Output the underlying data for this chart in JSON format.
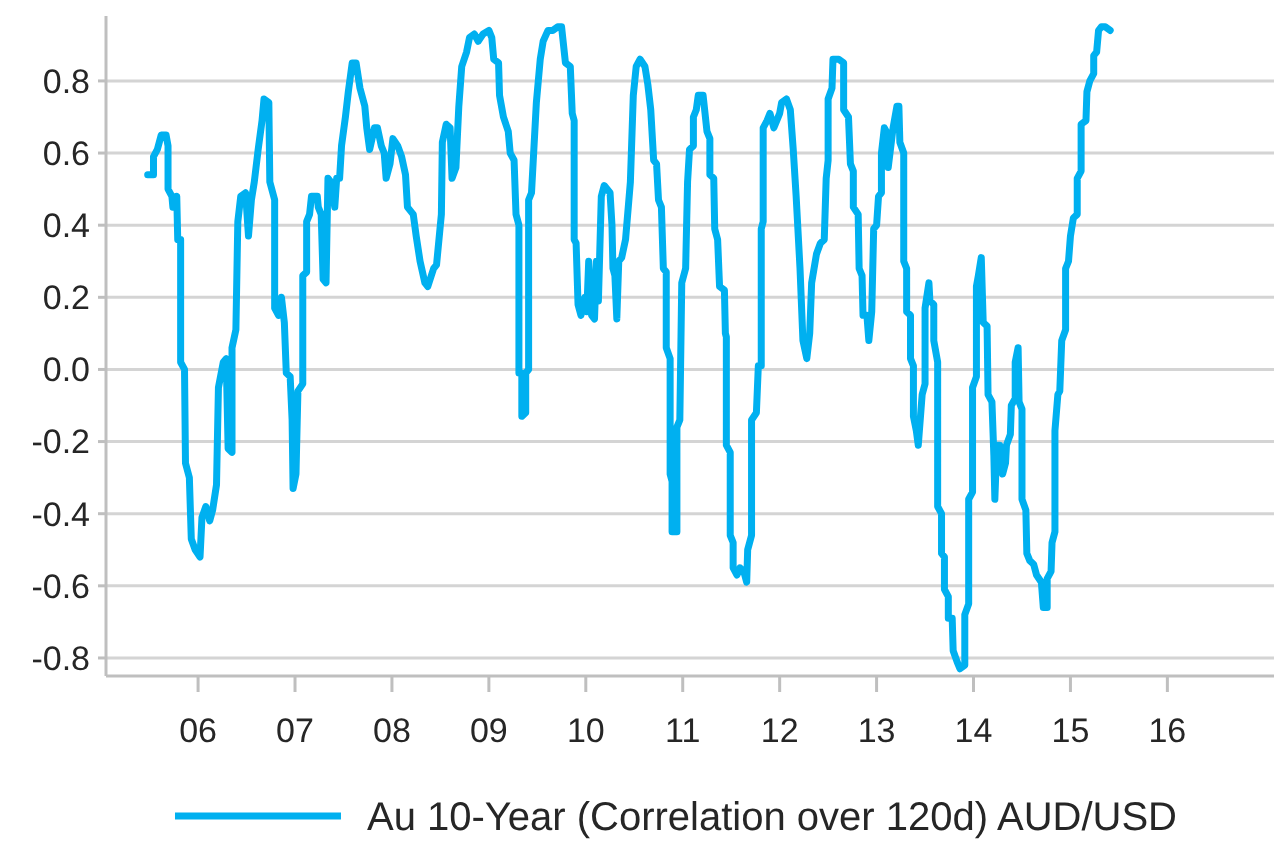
{
  "chart_data": {
    "type": "line",
    "x": [
      2005.48,
      2005.54,
      2005.54,
      2005.58,
      2005.62,
      2005.67,
      2005.69,
      2005.69,
      2005.73,
      2005.74,
      2005.78,
      2005.79,
      2005.82,
      2005.82,
      2005.86,
      2005.87,
      2005.91,
      2005.93,
      2005.97,
      2006.02,
      2006.04,
      2006.08,
      2006.12,
      2006.15,
      2006.19,
      2006.21,
      2006.26,
      2006.29,
      2006.31,
      2006.35,
      2006.35,
      2006.39,
      2006.41,
      2006.44,
      2006.49,
      2006.52,
      2006.55,
      2006.58,
      2006.62,
      2006.66,
      2006.68,
      2006.73,
      2006.74,
      2006.79,
      2006.79,
      2006.83,
      2006.86,
      2006.89,
      2006.91,
      2006.95,
      2006.97,
      2006.98,
      2007.01,
      2007.03,
      2007.08,
      2007.08,
      2007.12,
      2007.12,
      2007.15,
      2007.17,
      2007.23,
      2007.24,
      2007.27,
      2007.29,
      2007.32,
      2007.34,
      2007.37,
      2007.41,
      2007.43,
      2007.46,
      2007.48,
      2007.52,
      2007.55,
      2007.59,
      2007.63,
      2007.67,
      2007.72,
      2007.74,
      2007.77,
      2007.82,
      2007.85,
      2007.89,
      2007.92,
      2007.94,
      2007.98,
      2008.01,
      2008.06,
      2008.1,
      2008.14,
      2008.16,
      2008.22,
      2008.25,
      2008.29,
      2008.34,
      2008.37,
      2008.43,
      2008.46,
      2008.51,
      2008.52,
      2008.56,
      2008.6,
      2008.62,
      2008.66,
      2008.69,
      2008.72,
      2008.77,
      2008.8,
      2008.85,
      2008.89,
      2008.94,
      2009.0,
      2009.03,
      2009.05,
      2009.1,
      2009.11,
      2009.15,
      2009.2,
      2009.22,
      2009.26,
      2009.28,
      2009.31,
      2009.31,
      2009.34,
      2009.34,
      2009.38,
      2009.38,
      2009.41,
      2009.41,
      2009.44,
      2009.49,
      2009.53,
      2009.56,
      2009.61,
      2009.66,
      2009.71,
      2009.75,
      2009.79,
      2009.84,
      2009.86,
      2009.88,
      2009.88,
      2009.9,
      2009.92,
      2009.95,
      2009.99,
      2010.01,
      2010.03,
      2010.06,
      2010.09,
      2010.11,
      2010.13,
      2010.16,
      2010.19,
      2010.25,
      2010.27,
      2010.28,
      2010.3,
      2010.32,
      2010.34,
      2010.37,
      2010.41,
      2010.46,
      2010.49,
      2010.52,
      2010.56,
      2010.61,
      2010.64,
      2010.67,
      2010.7,
      2010.73,
      2010.75,
      2010.78,
      2010.8,
      2010.83,
      2010.83,
      2010.87,
      2010.87,
      2010.89,
      2010.89,
      2010.94,
      2010.94,
      2010.97,
      2010.99,
      2011.03,
      2011.05,
      2011.07,
      2011.11,
      2011.11,
      2011.14,
      2011.16,
      2011.21,
      2011.25,
      2011.28,
      2011.28,
      2011.32,
      2011.33,
      2011.36,
      2011.38,
      2011.43,
      2011.44,
      2011.45,
      2011.45,
      2011.49,
      2011.49,
      2011.52,
      2011.52,
      2011.56,
      2011.59,
      2011.63,
      2011.66,
      2011.67,
      2011.71,
      2011.71,
      2011.76,
      2011.78,
      2011.81,
      2011.81,
      2011.83,
      2011.83,
      2011.87,
      2011.9,
      2011.94,
      2011.97,
      2012.0,
      2012.02,
      2012.07,
      2012.11,
      2012.14,
      2012.17,
      2012.21,
      2012.24,
      2012.28,
      2012.31,
      2012.33,
      2012.38,
      2012.42,
      2012.46,
      2012.48,
      2012.5,
      2012.5,
      2012.54,
      2012.55,
      2012.61,
      2012.66,
      2012.66,
      2012.71,
      2012.73,
      2012.76,
      2012.76,
      2012.81,
      2012.82,
      2012.85,
      2012.86,
      2012.9,
      2012.92,
      2012.95,
      2012.97,
      2013.0,
      2013.02,
      2013.05,
      2013.05,
      2013.08,
      2013.1,
      2013.12,
      2013.17,
      2013.21,
      2013.23,
      2013.24,
      2013.28,
      2013.28,
      2013.31,
      2013.31,
      2013.35,
      2013.35,
      2013.38,
      2013.38,
      2013.41,
      2013.43,
      2013.45,
      2013.47,
      2013.5,
      2013.5,
      2013.54,
      2013.55,
      2013.59,
      2013.59,
      2013.63,
      2013.63,
      2013.67,
      2013.67,
      2013.7,
      2013.7,
      2013.74,
      2013.74,
      2013.78,
      2013.79,
      2013.83,
      2013.86,
      2013.91,
      2013.91,
      2013.95,
      2013.95,
      2013.99,
      2013.99,
      2014.03,
      2014.03,
      2014.05,
      2014.08,
      2014.1,
      2014.14,
      2014.15,
      2014.19,
      2014.21,
      2014.22,
      2014.24,
      2014.27,
      2014.3,
      2014.33,
      2014.34,
      2014.38,
      2014.39,
      2014.43,
      2014.43,
      2014.46,
      2014.47,
      2014.5,
      2014.5,
      2014.54,
      2014.55,
      2014.58,
      2014.62,
      2014.65,
      2014.7,
      2014.72,
      2014.76,
      2014.76,
      2014.8,
      2014.81,
      2014.84,
      2014.84,
      2014.87,
      2014.89,
      2014.91,
      2014.95,
      2014.95,
      2014.98,
      2015.0,
      2015.03,
      2015.07,
      2015.07,
      2015.11,
      2015.11,
      2015.16,
      2015.17,
      2015.2,
      2015.24,
      2015.24,
      2015.27,
      2015.29,
      2015.32,
      2015.36,
      2015.41
    ],
    "series": [
      {
        "name": "Au 10-Year (Correlation over 120d) AUD/USD",
        "color": "#00b0f0",
        "values": [
          0.54,
          0.54,
          0.59,
          0.61,
          0.65,
          0.65,
          0.62,
          0.5,
          0.48,
          0.45,
          0.48,
          0.36,
          0.36,
          0.02,
          0.0,
          -0.26,
          -0.3,
          -0.47,
          -0.5,
          -0.52,
          -0.41,
          -0.38,
          -0.42,
          -0.39,
          -0.32,
          -0.05,
          0.02,
          0.03,
          -0.22,
          -0.23,
          0.06,
          0.11,
          0.41,
          0.48,
          0.49,
          0.37,
          0.47,
          0.52,
          0.61,
          0.69,
          0.75,
          0.74,
          0.52,
          0.47,
          0.17,
          0.15,
          0.2,
          0.13,
          -0.01,
          -0.02,
          -0.14,
          -0.33,
          -0.29,
          -0.06,
          -0.04,
          0.26,
          0.27,
          0.41,
          0.43,
          0.48,
          0.48,
          0.45,
          0.43,
          0.25,
          0.24,
          0.53,
          0.52,
          0.45,
          0.53,
          0.53,
          0.62,
          0.7,
          0.77,
          0.85,
          0.85,
          0.78,
          0.73,
          0.67,
          0.61,
          0.67,
          0.67,
          0.62,
          0.6,
          0.53,
          0.57,
          0.64,
          0.62,
          0.59,
          0.54,
          0.45,
          0.43,
          0.37,
          0.3,
          0.24,
          0.23,
          0.28,
          0.29,
          0.43,
          0.63,
          0.68,
          0.67,
          0.53,
          0.56,
          0.73,
          0.84,
          0.88,
          0.92,
          0.93,
          0.91,
          0.93,
          0.94,
          0.92,
          0.86,
          0.85,
          0.76,
          0.7,
          0.66,
          0.6,
          0.58,
          0.43,
          0.4,
          -0.01,
          -0.01,
          -0.13,
          -0.12,
          -0.01,
          0.0,
          0.47,
          0.49,
          0.74,
          0.86,
          0.91,
          0.94,
          0.94,
          0.95,
          0.95,
          0.85,
          0.84,
          0.71,
          0.69,
          0.36,
          0.35,
          0.18,
          0.15,
          0.2,
          0.16,
          0.3,
          0.15,
          0.14,
          0.3,
          0.19,
          0.48,
          0.51,
          0.49,
          0.4,
          0.28,
          0.26,
          0.14,
          0.3,
          0.31,
          0.36,
          0.52,
          0.76,
          0.84,
          0.86,
          0.84,
          0.79,
          0.72,
          0.58,
          0.57,
          0.47,
          0.45,
          0.28,
          0.27,
          0.06,
          0.03,
          -0.29,
          -0.31,
          -0.45,
          -0.45,
          -0.16,
          -0.14,
          0.24,
          0.28,
          0.52,
          0.61,
          0.62,
          0.7,
          0.72,
          0.76,
          0.76,
          0.66,
          0.64,
          0.54,
          0.53,
          0.39,
          0.36,
          0.23,
          0.22,
          0.1,
          0.09,
          -0.21,
          -0.23,
          -0.46,
          -0.48,
          -0.55,
          -0.57,
          -0.55,
          -0.56,
          -0.59,
          -0.5,
          -0.46,
          -0.14,
          -0.12,
          0.01,
          0.01,
          0.39,
          0.41,
          0.67,
          0.69,
          0.71,
          0.67,
          0.69,
          0.71,
          0.74,
          0.75,
          0.72,
          0.61,
          0.48,
          0.28,
          0.08,
          0.03,
          0.1,
          0.24,
          0.32,
          0.35,
          0.36,
          0.53,
          0.58,
          0.75,
          0.78,
          0.86,
          0.86,
          0.85,
          0.72,
          0.7,
          0.57,
          0.55,
          0.45,
          0.43,
          0.28,
          0.26,
          0.15,
          0.15,
          0.08,
          0.16,
          0.39,
          0.4,
          0.48,
          0.49,
          0.6,
          0.67,
          0.66,
          0.56,
          0.67,
          0.73,
          0.73,
          0.63,
          0.6,
          0.3,
          0.28,
          0.16,
          0.15,
          0.03,
          0.01,
          -0.13,
          -0.17,
          -0.21,
          -0.14,
          -0.07,
          -0.04,
          0.17,
          0.24,
          0.19,
          0.18,
          0.08,
          0.02,
          -0.38,
          -0.4,
          -0.51,
          -0.52,
          -0.61,
          -0.63,
          -0.69,
          -0.69,
          -0.78,
          -0.81,
          -0.83,
          -0.82,
          -0.68,
          -0.65,
          -0.36,
          -0.34,
          -0.05,
          -0.02,
          0.23,
          0.26,
          0.31,
          0.13,
          0.12,
          -0.07,
          -0.09,
          -0.24,
          -0.36,
          -0.21,
          -0.21,
          -0.29,
          -0.26,
          -0.21,
          -0.18,
          -0.1,
          -0.08,
          0.02,
          0.06,
          -0.09,
          -0.11,
          -0.36,
          -0.39,
          -0.51,
          -0.53,
          -0.54,
          -0.57,
          -0.59,
          -0.66,
          -0.66,
          -0.58,
          -0.56,
          -0.48,
          -0.45,
          -0.17,
          -0.07,
          -0.06,
          0.08,
          0.11,
          0.28,
          0.3,
          0.37,
          0.42,
          0.43,
          0.53,
          0.55,
          0.68,
          0.69,
          0.77,
          0.8,
          0.82,
          0.87,
          0.88,
          0.94,
          0.95,
          0.95,
          0.94
        ]
      }
    ],
    "xlim": [
      2005.05,
      2017.1
    ],
    "xticks": [
      {
        "value": 2006,
        "label": "06"
      },
      {
        "value": 2007,
        "label": "07"
      },
      {
        "value": 2008,
        "label": "08"
      },
      {
        "value": 2009,
        "label": "09"
      },
      {
        "value": 2010,
        "label": "10"
      },
      {
        "value": 2011,
        "label": "11"
      },
      {
        "value": 2012,
        "label": "12"
      },
      {
        "value": 2013,
        "label": "13"
      },
      {
        "value": 2014,
        "label": "14"
      },
      {
        "value": 2015,
        "label": "15"
      },
      {
        "value": 2016,
        "label": "16"
      }
    ],
    "ylim": [
      -0.85,
      0.98
    ],
    "yticks": [
      -0.8,
      -0.6,
      -0.4,
      -0.2,
      {
        "value": 0,
        "label": "0.0"
      },
      0.2,
      0.4,
      0.6,
      0.8
    ],
    "grid": "y",
    "legend": "bottom",
    "line_style": "solid"
  }
}
